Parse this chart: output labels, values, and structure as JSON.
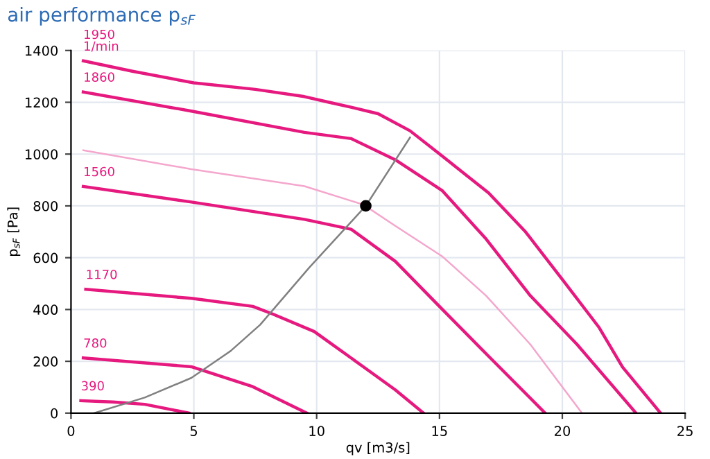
{
  "chart_data": {
    "type": "line",
    "title": "air performance p$_{sF}$",
    "xlabel": "qv [m3/s]",
    "ylabel": "p$_{sF}$ [Pa]",
    "xlim": [
      0,
      25
    ],
    "ylim": [
      0,
      1400
    ],
    "xticks": [
      0,
      5,
      10,
      15,
      20,
      25
    ],
    "yticks": [
      0,
      200,
      400,
      600,
      800,
      1000,
      1200,
      1400
    ],
    "grid": true,
    "legend": false,
    "marker": "none",
    "line_style": "solid",
    "series": [
      {
        "name": "1950\n1/min",
        "color": "#e6197f",
        "x": [
          0.5,
          2.5,
          5,
          7.5,
          9.5,
          10.5,
          11.4,
          12.5,
          13.8,
          15.1,
          17,
          18.5,
          20.1,
          21.5,
          22.45,
          24.0
        ],
        "values": [
          1360,
          1320,
          1275,
          1250,
          1222,
          1200,
          1181,
          1156,
          1090,
          993,
          850,
          700,
          504,
          330,
          178,
          0
        ]
      },
      {
        "name": "1860",
        "color": "#e6197f",
        "x": [
          0.5,
          4.9,
          9.5,
          11.4,
          13.2,
          15.1,
          16.9,
          18.7,
          20.6,
          23.0
        ],
        "values": [
          1240,
          1166,
          1084,
          1060,
          978,
          860,
          672,
          453,
          265,
          0
        ]
      },
      {
        "color": "#f4a6cc",
        "x": [
          0.5,
          4.9,
          9.5,
          11.9,
          13.2,
          15.1,
          16.9,
          18.7,
          20.8
        ],
        "values": [
          1015,
          942,
          876,
          805,
          723,
          606,
          453,
          265,
          0
        ]
      },
      {
        "name": "1560",
        "color": "#e6197f",
        "x": [
          0.5,
          4.9,
          9.5,
          11.4,
          13.2,
          15.1,
          16.9,
          19.3
        ],
        "values": [
          875,
          815,
          748,
          710,
          586,
          402,
          229,
          0
        ]
      },
      {
        "name": "1170",
        "color": "#e6197f",
        "x": [
          0.6,
          4.9,
          7.4,
          8.2,
          9.9,
          11.9,
          13.2,
          14.35
        ],
        "values": [
          478,
          443,
          412,
          383,
          315,
          179,
          90,
          0
        ]
      },
      {
        "name": "780",
        "color": "#e6197f",
        "x": [
          0.5,
          4.9,
          7.4,
          9.6
        ],
        "values": [
          213,
          179,
          102,
          0
        ]
      },
      {
        "name": "390",
        "color": "#e6197f",
        "x": [
          0.4,
          1.7,
          3.0,
          4.8
        ],
        "values": [
          48,
          43,
          34,
          0
        ]
      },
      {
        "color": "#808080",
        "x": [
          0.95,
          3,
          4.9,
          6.5,
          7.7,
          9.7,
          12,
          13.8
        ],
        "values": [
          0,
          60,
          136,
          240,
          341,
          562,
          800,
          1064
        ]
      },
      {
        "type": "scatter",
        "marker": "circle",
        "color": "#000000",
        "x": [
          12
        ],
        "values": [
          800
        ]
      }
    ]
  }
}
